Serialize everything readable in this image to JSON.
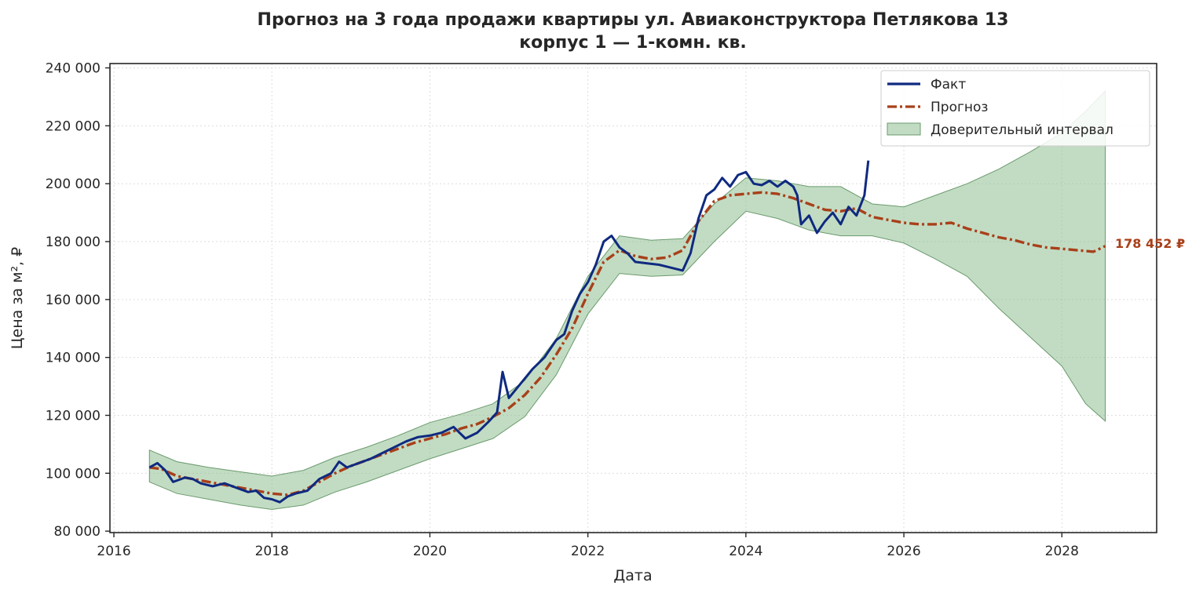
{
  "chart_data": {
    "type": "line",
    "title_line1": "Прогноз на 3 года продажи квартиры  ул. Авиаконструктора Петлякова 13",
    "title_line2": "корпус 1 — 1-комн. кв.",
    "xlabel": "Дата",
    "ylabel": "Цена за м², ₽",
    "xlim": [
      2015.95,
      2029.2
    ],
    "ylim": [
      79500,
      241500
    ],
    "x_ticks": [
      2016,
      2018,
      2020,
      2022,
      2024,
      2026,
      2028
    ],
    "x_tick_labels": [
      "2016",
      "2018",
      "2020",
      "2022",
      "2024",
      "2026",
      "2028"
    ],
    "y_ticks": [
      80000,
      100000,
      120000,
      140000,
      160000,
      180000,
      200000,
      220000,
      240000
    ],
    "y_tick_labels": [
      "80 000",
      "100 000",
      "120 000",
      "140 000",
      "160 000",
      "180 000",
      "200 000",
      "220 000",
      "240 000"
    ],
    "grid": true,
    "legend_position": "top-right",
    "end_label": "178 452 ₽",
    "colors": {
      "fact": "#0f2a80",
      "forecast": "#a8401a",
      "interval_fill": "#8fbf92",
      "interval_edge": "#6a9a6d",
      "grid": "#dddddd",
      "axes": "#262626"
    },
    "series": [
      {
        "name": "Факт",
        "x": [
          2016.45,
          2016.55,
          2016.65,
          2016.75,
          2016.9,
          2017.0,
          2017.1,
          2017.25,
          2017.4,
          2017.55,
          2017.7,
          2017.8,
          2017.9,
          2018.0,
          2018.1,
          2018.2,
          2018.3,
          2018.45,
          2018.6,
          2018.75,
          2018.85,
          2018.95,
          2019.1,
          2019.25,
          2019.4,
          2019.55,
          2019.7,
          2019.85,
          2020.0,
          2020.15,
          2020.3,
          2020.45,
          2020.6,
          2020.75,
          2020.85,
          2020.92,
          2021.0,
          2021.15,
          2021.3,
          2021.45,
          2021.6,
          2021.7,
          2021.8,
          2021.9,
          2022.0,
          2022.1,
          2022.2,
          2022.3,
          2022.4,
          2022.5,
          2022.6,
          2022.75,
          2022.9,
          2023.05,
          2023.2,
          2023.3,
          2023.4,
          2023.5,
          2023.6,
          2023.7,
          2023.8,
          2023.9,
          2024.0,
          2024.1,
          2024.2,
          2024.3,
          2024.4,
          2024.5,
          2024.6,
          2024.65,
          2024.7,
          2024.8,
          2024.9,
          2025.0,
          2025.1,
          2025.2,
          2025.3,
          2025.4,
          2025.5,
          2025.55
        ],
        "values": [
          102000,
          103500,
          101000,
          97000,
          98500,
          98000,
          96500,
          95500,
          96500,
          95000,
          93500,
          94000,
          91500,
          91000,
          90000,
          92000,
          93000,
          94000,
          98000,
          100000,
          104000,
          102000,
          103500,
          105000,
          107000,
          109000,
          111000,
          112500,
          113000,
          114000,
          116000,
          112000,
          114000,
          118000,
          121000,
          135000,
          126000,
          131000,
          136000,
          140000,
          146000,
          148000,
          156000,
          162000,
          166000,
          172000,
          180000,
          182000,
          178000,
          176000,
          173000,
          172500,
          172000,
          171000,
          170000,
          176000,
          188000,
          196000,
          198000,
          202000,
          199000,
          203000,
          204000,
          200000,
          199500,
          201000,
          199000,
          201000,
          199000,
          196000,
          186000,
          189000,
          183000,
          187000,
          190000,
          186000,
          192000,
          189000,
          196000,
          208000
        ]
      },
      {
        "name": "Прогноз",
        "x": [
          2016.45,
          2016.6,
          2016.8,
          2017.0,
          2017.2,
          2017.4,
          2017.6,
          2017.8,
          2018.0,
          2018.2,
          2018.4,
          2018.6,
          2018.8,
          2019.0,
          2019.2,
          2019.4,
          2019.6,
          2019.8,
          2020.0,
          2020.2,
          2020.4,
          2020.6,
          2020.8,
          2021.0,
          2021.2,
          2021.4,
          2021.6,
          2021.8,
          2022.0,
          2022.2,
          2022.4,
          2022.6,
          2022.8,
          2023.0,
          2023.2,
          2023.4,
          2023.6,
          2023.8,
          2024.0,
          2024.2,
          2024.4,
          2024.6,
          2024.8,
          2025.0,
          2025.2,
          2025.4,
          2025.6,
          2025.8,
          2026.0,
          2026.2,
          2026.4,
          2026.6,
          2026.8,
          2027.0,
          2027.2,
          2027.4,
          2027.6,
          2027.8,
          2028.0,
          2028.2,
          2028.4,
          2028.55
        ],
        "values": [
          102000,
          101500,
          99000,
          98000,
          97000,
          96000,
          95000,
          94000,
          93000,
          92500,
          94000,
          97000,
          100000,
          102500,
          104500,
          106500,
          108500,
          110500,
          112000,
          113500,
          115500,
          117000,
          119500,
          122500,
          127000,
          133000,
          141000,
          150000,
          162000,
          173000,
          177000,
          175000,
          174000,
          174500,
          177000,
          187000,
          194000,
          196000,
          196500,
          197000,
          196500,
          195000,
          193000,
          191000,
          190500,
          191500,
          188500,
          187500,
          186500,
          186000,
          186000,
          186500,
          184500,
          183000,
          181500,
          180500,
          179000,
          178000,
          177500,
          177000,
          176500,
          178452
        ]
      }
    ],
    "interval": {
      "name": "Доверительный интервал",
      "x": [
        2016.45,
        2016.8,
        2017.2,
        2017.6,
        2018.0,
        2018.4,
        2018.8,
        2019.2,
        2019.6,
        2020.0,
        2020.4,
        2020.8,
        2021.2,
        2021.6,
        2022.0,
        2022.4,
        2022.8,
        2023.2,
        2023.6,
        2024.0,
        2024.4,
        2024.8,
        2025.2,
        2025.6,
        2026.0,
        2026.4,
        2026.8,
        2027.2,
        2027.6,
        2028.0,
        2028.3,
        2028.55
      ],
      "lower": [
        97000,
        93000,
        91000,
        89000,
        87500,
        89000,
        93500,
        97000,
        101000,
        105000,
        108500,
        112000,
        119500,
        134000,
        155000,
        169000,
        168000,
        168500,
        180000,
        190500,
        188000,
        184000,
        182000,
        182000,
        179500,
        174000,
        168000,
        157000,
        147000,
        137000,
        124000,
        118000
      ],
      "upper": [
        108000,
        104000,
        102000,
        100500,
        99000,
        101000,
        105500,
        109000,
        113000,
        117500,
        120500,
        124000,
        132000,
        146500,
        168000,
        182000,
        180500,
        181000,
        193000,
        202000,
        201000,
        199000,
        199000,
        193000,
        192000,
        196000,
        200000,
        205000,
        211000,
        217500,
        225000,
        232000
      ]
    }
  }
}
